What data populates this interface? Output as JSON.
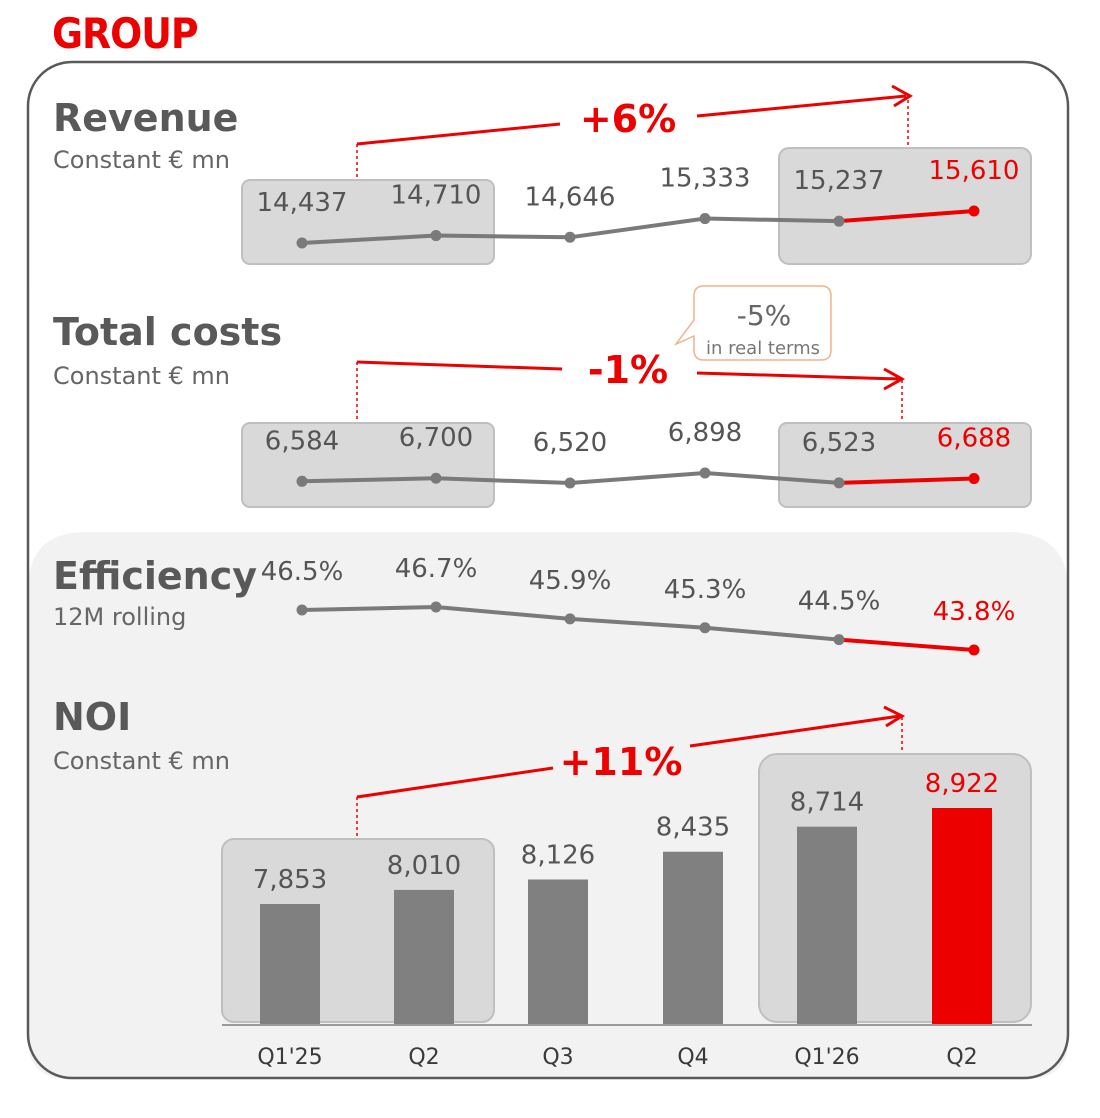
{
  "header": {
    "title": "GROUP"
  },
  "colors": {
    "accent": "#ec0000",
    "line_gray": "#7a7a7a",
    "bar_gray": "#808080",
    "text_gray": "#555555",
    "box_fill": "#d9d9d9",
    "box_stroke": "#bfbfbf",
    "panel_light": "#f2f2f2",
    "callout_border": "#f0b48a"
  },
  "x_labels": [
    "Q1'25",
    "Q2",
    "Q3",
    "Q4",
    "Q1'26",
    "Q2"
  ],
  "chart_data": [
    {
      "type": "line",
      "title": "Revenue",
      "subtitle": "Constant € mn",
      "categories": [
        "Q1'25",
        "Q2",
        "Q3",
        "Q4",
        "Q1'26",
        "Q2"
      ],
      "values": [
        14437,
        14710,
        14646,
        15333,
        15237,
        15610
      ],
      "labels": [
        "14,437",
        "14,710",
        "14,646",
        "15,333",
        "15,237",
        "15,610"
      ],
      "change": "+6%",
      "highlight_last": true
    },
    {
      "type": "line",
      "title": "Total costs",
      "subtitle": "Constant € mn",
      "categories": [
        "Q1'25",
        "Q2",
        "Q3",
        "Q4",
        "Q1'26",
        "Q2"
      ],
      "values": [
        6584,
        6700,
        6520,
        6898,
        6523,
        6688
      ],
      "labels": [
        "6,584",
        "6,700",
        "6,520",
        "6,898",
        "6,523",
        "6,688"
      ],
      "change": "-1%",
      "callout": {
        "value": "-5%",
        "text": "in real terms"
      },
      "highlight_last": true
    },
    {
      "type": "line",
      "title": "Efficiency",
      "subtitle": "12M rolling",
      "categories": [
        "Q1'25",
        "Q2",
        "Q3",
        "Q4",
        "Q1'26",
        "Q2"
      ],
      "values": [
        46.5,
        46.7,
        45.9,
        45.3,
        44.5,
        43.8
      ],
      "labels": [
        "46.5%",
        "46.7%",
        "45.9%",
        "45.3%",
        "44.5%",
        "43.8%"
      ],
      "highlight_last": true
    },
    {
      "type": "bar",
      "title": "NOI",
      "subtitle": "Constant € mn",
      "categories": [
        "Q1'25",
        "Q2",
        "Q3",
        "Q4",
        "Q1'26",
        "Q2"
      ],
      "values": [
        7853,
        8010,
        8126,
        8435,
        8714,
        8922
      ],
      "labels": [
        "7,853",
        "8,010",
        "8,126",
        "8,435",
        "8,714",
        "8,922"
      ],
      "change": "+11%",
      "highlight_last": true
    }
  ]
}
